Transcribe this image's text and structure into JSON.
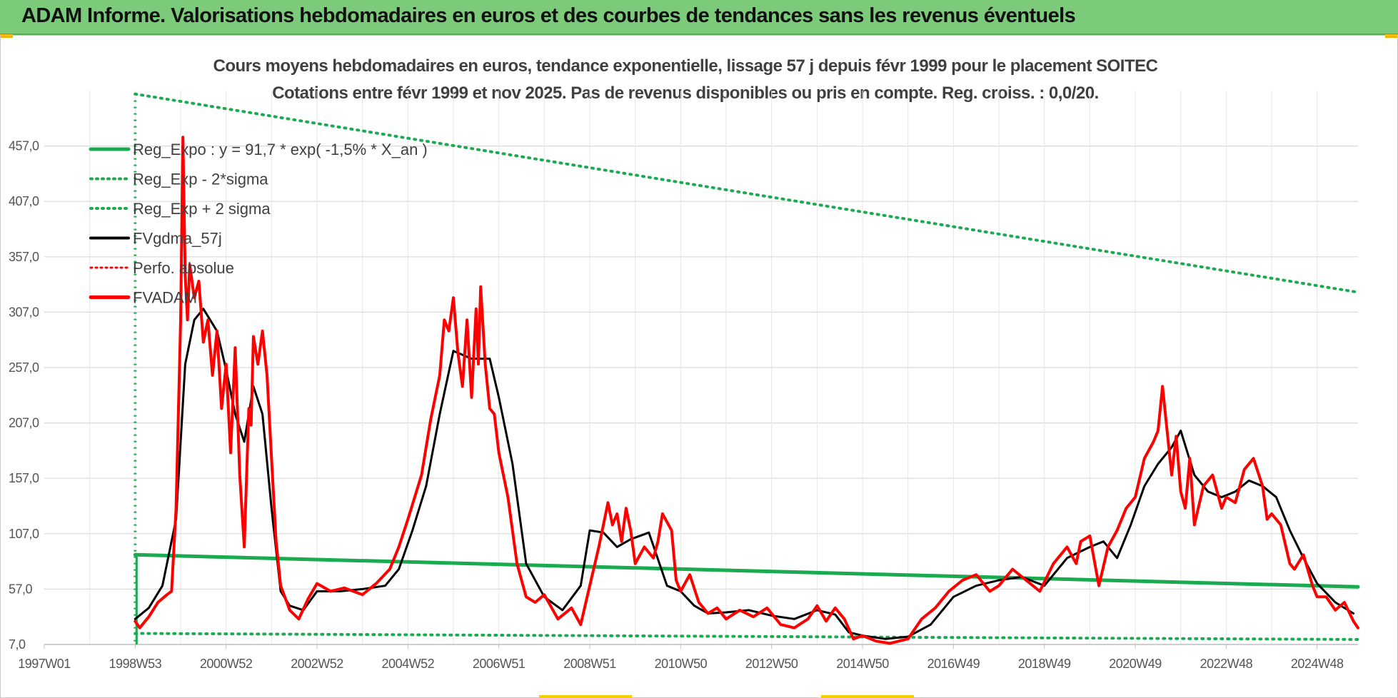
{
  "header": {
    "title": "ADAM Informe. Valorisations hebdomadaires en euros et des courbes de tendances sans les revenus éventuels"
  },
  "colors": {
    "banner": "#7ccb7a",
    "reg": "#1aaa50",
    "fvgdma": "#000000",
    "fvadam": "#ff0000",
    "perfo": "#ff0000"
  },
  "chart_data": {
    "type": "line",
    "title": "Cours moyens hebdomadaires en euros, tendance exponentielle, lissage 57 j depuis févr 1999 pour le placement SOITEC",
    "subtitle": "Cotations entre févr 1999 et nov 2025. Pas de revenus disponibles ou pris en compte. Reg. croiss. : 0,0/20.",
    "xlabel": "",
    "ylabel": "",
    "x_range": [
      1997.0,
      2025.9
    ],
    "ylim": [
      7.0,
      507.0
    ],
    "y_ticks": [
      "7,0",
      "57,0",
      "107,0",
      "157,0",
      "207,0",
      "257,0",
      "307,0",
      "357,0",
      "407,0",
      "457,0"
    ],
    "y_tick_values": [
      7,
      57,
      107,
      157,
      207,
      257,
      307,
      357,
      407,
      457
    ],
    "x_ticks": [
      "1997W01",
      "1998W53",
      "2000W52",
      "2002W52",
      "2004W52",
      "2006W51",
      "2008W51",
      "2010W50",
      "2012W50",
      "2014W50",
      "2016W49",
      "2018W49",
      "2020W49",
      "2022W48",
      "2024W48"
    ],
    "x_tick_values": [
      1997.0,
      1999.0,
      2001.0,
      2003.0,
      2005.0,
      2007.0,
      2009.0,
      2011.0,
      2013.0,
      2015.0,
      2017.0,
      2019.0,
      2021.0,
      2023.0,
      2025.0
    ],
    "legend": [
      {
        "name": "Reg_Expo : y = 91,7 * exp( -1,5% *  X_an )",
        "style": "solid-green"
      },
      {
        "name": "Reg_Exp - 2*sigma",
        "style": "dotted-green"
      },
      {
        "name": "Reg_Exp + 2 sigma",
        "style": "dotted-green"
      },
      {
        "name": "FVgdma_57j",
        "style": "solid-black"
      },
      {
        "name": "Perfo. absolue",
        "style": "dotted-red"
      },
      {
        "name": "FVADAM",
        "style": "solid-red"
      }
    ],
    "series": [
      {
        "name": "Reg_Expo",
        "x": [
          1999.0,
          2025.9
        ],
        "values": [
          88.0,
          59.0
        ]
      },
      {
        "name": "Reg_Exp - 2*sigma",
        "x": [
          1999.0,
          2025.9
        ],
        "values": [
          17.0,
          11.5
        ]
      },
      {
        "name": "Reg_Exp + 2 sigma",
        "x": [
          1999.0,
          2025.9
        ],
        "values": [
          504.0,
          325.0
        ]
      },
      {
        "name": "FVgdma_57j",
        "x": [
          1999.0,
          1999.3,
          1999.6,
          1999.9,
          2000.1,
          2000.3,
          2000.5,
          2000.8,
          2001.0,
          2001.2,
          2001.4,
          2001.6,
          2001.8,
          2002.0,
          2002.2,
          2002.4,
          2002.7,
          2003.0,
          2003.5,
          2004.0,
          2004.5,
          2004.8,
          2005.1,
          2005.4,
          2005.7,
          2006.0,
          2006.4,
          2006.8,
          2007.0,
          2007.3,
          2007.6,
          2008.0,
          2008.4,
          2008.8,
          2009.0,
          2009.3,
          2009.6,
          2009.9,
          2010.3,
          2010.7,
          2011.0,
          2011.3,
          2011.6,
          2012.0,
          2012.5,
          2013.0,
          2013.5,
          2014.0,
          2014.4,
          2014.7,
          2015.0,
          2015.5,
          2016.0,
          2016.5,
          2017.0,
          2017.5,
          2018.0,
          2018.5,
          2019.0,
          2019.5,
          2020.0,
          2020.3,
          2020.6,
          2020.9,
          2021.2,
          2021.5,
          2021.8,
          2022.0,
          2022.3,
          2022.6,
          2022.9,
          2023.2,
          2023.5,
          2023.8,
          2024.1,
          2024.4,
          2024.7,
          2025.0,
          2025.4,
          2025.8
        ],
        "values": [
          30,
          40,
          60,
          120,
          260,
          300,
          310,
          290,
          255,
          215,
          190,
          240,
          215,
          130,
          55,
          42,
          38,
          55,
          55,
          57,
          60,
          75,
          110,
          150,
          215,
          272,
          265,
          265,
          230,
          170,
          80,
          50,
          38,
          60,
          110,
          108,
          95,
          102,
          108,
          60,
          55,
          42,
          35,
          36,
          38,
          33,
          30,
          38,
          34,
          18,
          15,
          12,
          14,
          25,
          50,
          60,
          65,
          68,
          60,
          85,
          95,
          100,
          85,
          115,
          150,
          170,
          185,
          200,
          160,
          145,
          140,
          145,
          155,
          150,
          140,
          110,
          85,
          62,
          45,
          35
        ]
      },
      {
        "name": "FVADAM",
        "x": [
          1999.0,
          1999.1,
          1999.3,
          1999.5,
          1999.7,
          1999.8,
          1999.9,
          2000.0,
          2000.05,
          2000.1,
          2000.15,
          2000.2,
          2000.3,
          2000.4,
          2000.5,
          2000.6,
          2000.7,
          2000.8,
          2000.9,
          2001.0,
          2001.1,
          2001.2,
          2001.3,
          2001.4,
          2001.5,
          2001.55,
          2001.6,
          2001.7,
          2001.8,
          2001.9,
          2002.0,
          2002.1,
          2002.2,
          2002.4,
          2002.6,
          2002.8,
          2003.0,
          2003.3,
          2003.6,
          2004.0,
          2004.3,
          2004.6,
          2004.8,
          2005.0,
          2005.3,
          2005.5,
          2005.7,
          2005.8,
          2005.9,
          2006.0,
          2006.1,
          2006.2,
          2006.3,
          2006.4,
          2006.5,
          2006.55,
          2006.6,
          2006.7,
          2006.8,
          2006.9,
          2007.0,
          2007.2,
          2007.4,
          2007.6,
          2007.8,
          2008.0,
          2008.3,
          2008.6,
          2008.8,
          2009.0,
          2009.2,
          2009.4,
          2009.5,
          2009.6,
          2009.7,
          2009.8,
          2009.9,
          2010.0,
          2010.2,
          2010.4,
          2010.5,
          2010.6,
          2010.8,
          2010.9,
          2011.0,
          2011.2,
          2011.4,
          2011.6,
          2011.8,
          2012.0,
          2012.3,
          2012.6,
          2012.9,
          2013.2,
          2013.5,
          2013.8,
          2014.0,
          2014.2,
          2014.4,
          2014.6,
          2014.8,
          2015.0,
          2015.3,
          2015.6,
          2016.0,
          2016.3,
          2016.6,
          2016.9,
          2017.2,
          2017.5,
          2017.8,
          2018.0,
          2018.3,
          2018.6,
          2018.9,
          2019.2,
          2019.5,
          2019.7,
          2019.8,
          2020.0,
          2020.2,
          2020.4,
          2020.6,
          2020.8,
          2021.0,
          2021.2,
          2021.4,
          2021.5,
          2021.6,
          2021.8,
          2021.9,
          2022.0,
          2022.1,
          2022.2,
          2022.3,
          2022.5,
          2022.7,
          2022.9,
          2023.0,
          2023.2,
          2023.4,
          2023.6,
          2023.8,
          2023.9,
          2024.0,
          2024.2,
          2024.4,
          2024.5,
          2024.7,
          2024.9,
          2025.0,
          2025.2,
          2025.4,
          2025.6,
          2025.8,
          2025.9
        ],
        "values": [
          28,
          22,
          32,
          45,
          52,
          55,
          130,
          300,
          465,
          340,
          300,
          350,
          320,
          335,
          280,
          300,
          250,
          290,
          220,
          260,
          180,
          275,
          160,
          95,
          220,
          205,
          285,
          260,
          290,
          250,
          175,
          100,
          60,
          38,
          30,
          48,
          62,
          55,
          58,
          52,
          62,
          75,
          95,
          120,
          160,
          210,
          250,
          300,
          290,
          320,
          270,
          240,
          300,
          230,
          310,
          260,
          330,
          260,
          220,
          215,
          180,
          140,
          80,
          50,
          45,
          52,
          30,
          40,
          25,
          60,
          95,
          135,
          115,
          125,
          100,
          130,
          110,
          80,
          95,
          85,
          100,
          125,
          110,
          65,
          55,
          70,
          45,
          35,
          40,
          30,
          38,
          32,
          40,
          25,
          22,
          30,
          42,
          28,
          40,
          30,
          12,
          15,
          10,
          8,
          12,
          30,
          40,
          55,
          65,
          70,
          55,
          60,
          75,
          65,
          55,
          80,
          95,
          80,
          100,
          105,
          60,
          95,
          110,
          130,
          140,
          175,
          190,
          200,
          240,
          160,
          195,
          145,
          130,
          175,
          115,
          150,
          160,
          130,
          140,
          135,
          165,
          175,
          150,
          120,
          125,
          115,
          80,
          75,
          88,
          60,
          50,
          50,
          38,
          45,
          28,
          22
        ]
      }
    ]
  }
}
